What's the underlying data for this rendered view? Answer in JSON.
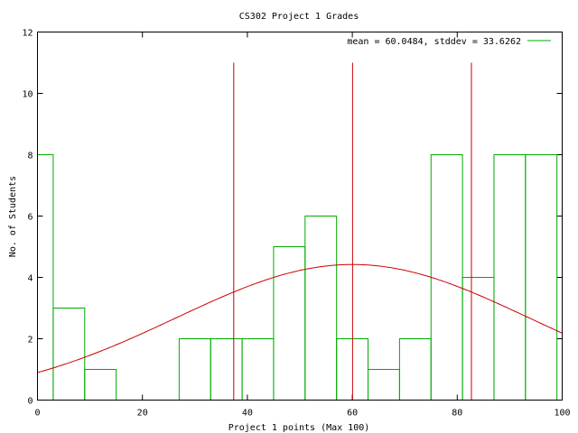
{
  "chart_data": {
    "type": "bar",
    "title": "CS302 Project 1 Grades",
    "xlabel": "Project 1 points (Max 100)",
    "ylabel": "No. of Students",
    "xlim": [
      0,
      100
    ],
    "ylim": [
      0,
      12
    ],
    "x_ticks": [
      "0",
      "20",
      "40",
      "60",
      "80",
      "100"
    ],
    "y_ticks": [
      "0",
      "2",
      "4",
      "6",
      "8",
      "10",
      "12"
    ],
    "grid": false,
    "legend_position": "top-right",
    "histogram": {
      "color": "#00aa00",
      "bins": [
        {
          "from": 0,
          "to": 3,
          "count": 8
        },
        {
          "from": 3,
          "to": 9,
          "count": 3
        },
        {
          "from": 9,
          "to": 15,
          "count": 1
        },
        {
          "from": 27,
          "to": 33,
          "count": 2
        },
        {
          "from": 33,
          "to": 39,
          "count": 2
        },
        {
          "from": 39,
          "to": 45,
          "count": 2
        },
        {
          "from": 45,
          "to": 51,
          "count": 5
        },
        {
          "from": 51,
          "to": 57,
          "count": 6
        },
        {
          "from": 57,
          "to": 63,
          "count": 2
        },
        {
          "from": 63,
          "to": 69,
          "count": 1
        },
        {
          "from": 69,
          "to": 75,
          "count": 2
        },
        {
          "from": 75,
          "to": 81,
          "count": 8
        },
        {
          "from": 81,
          "to": 87,
          "count": 4
        },
        {
          "from": 87,
          "to": 93,
          "count": 8
        },
        {
          "from": 93,
          "to": 99,
          "count": 8
        }
      ]
    },
    "legend": {
      "label": "mean = 60.0484, stddev = 33.6262",
      "color": "#00aa00"
    },
    "normal_curve": {
      "color": "#cc0000",
      "mean": 60.0484,
      "stddev": 33.6262,
      "peak": 4.42
    },
    "vertical_lines": {
      "color": "#cc0000",
      "x": [
        37.4,
        60.05,
        82.7
      ],
      "height": 11
    }
  }
}
